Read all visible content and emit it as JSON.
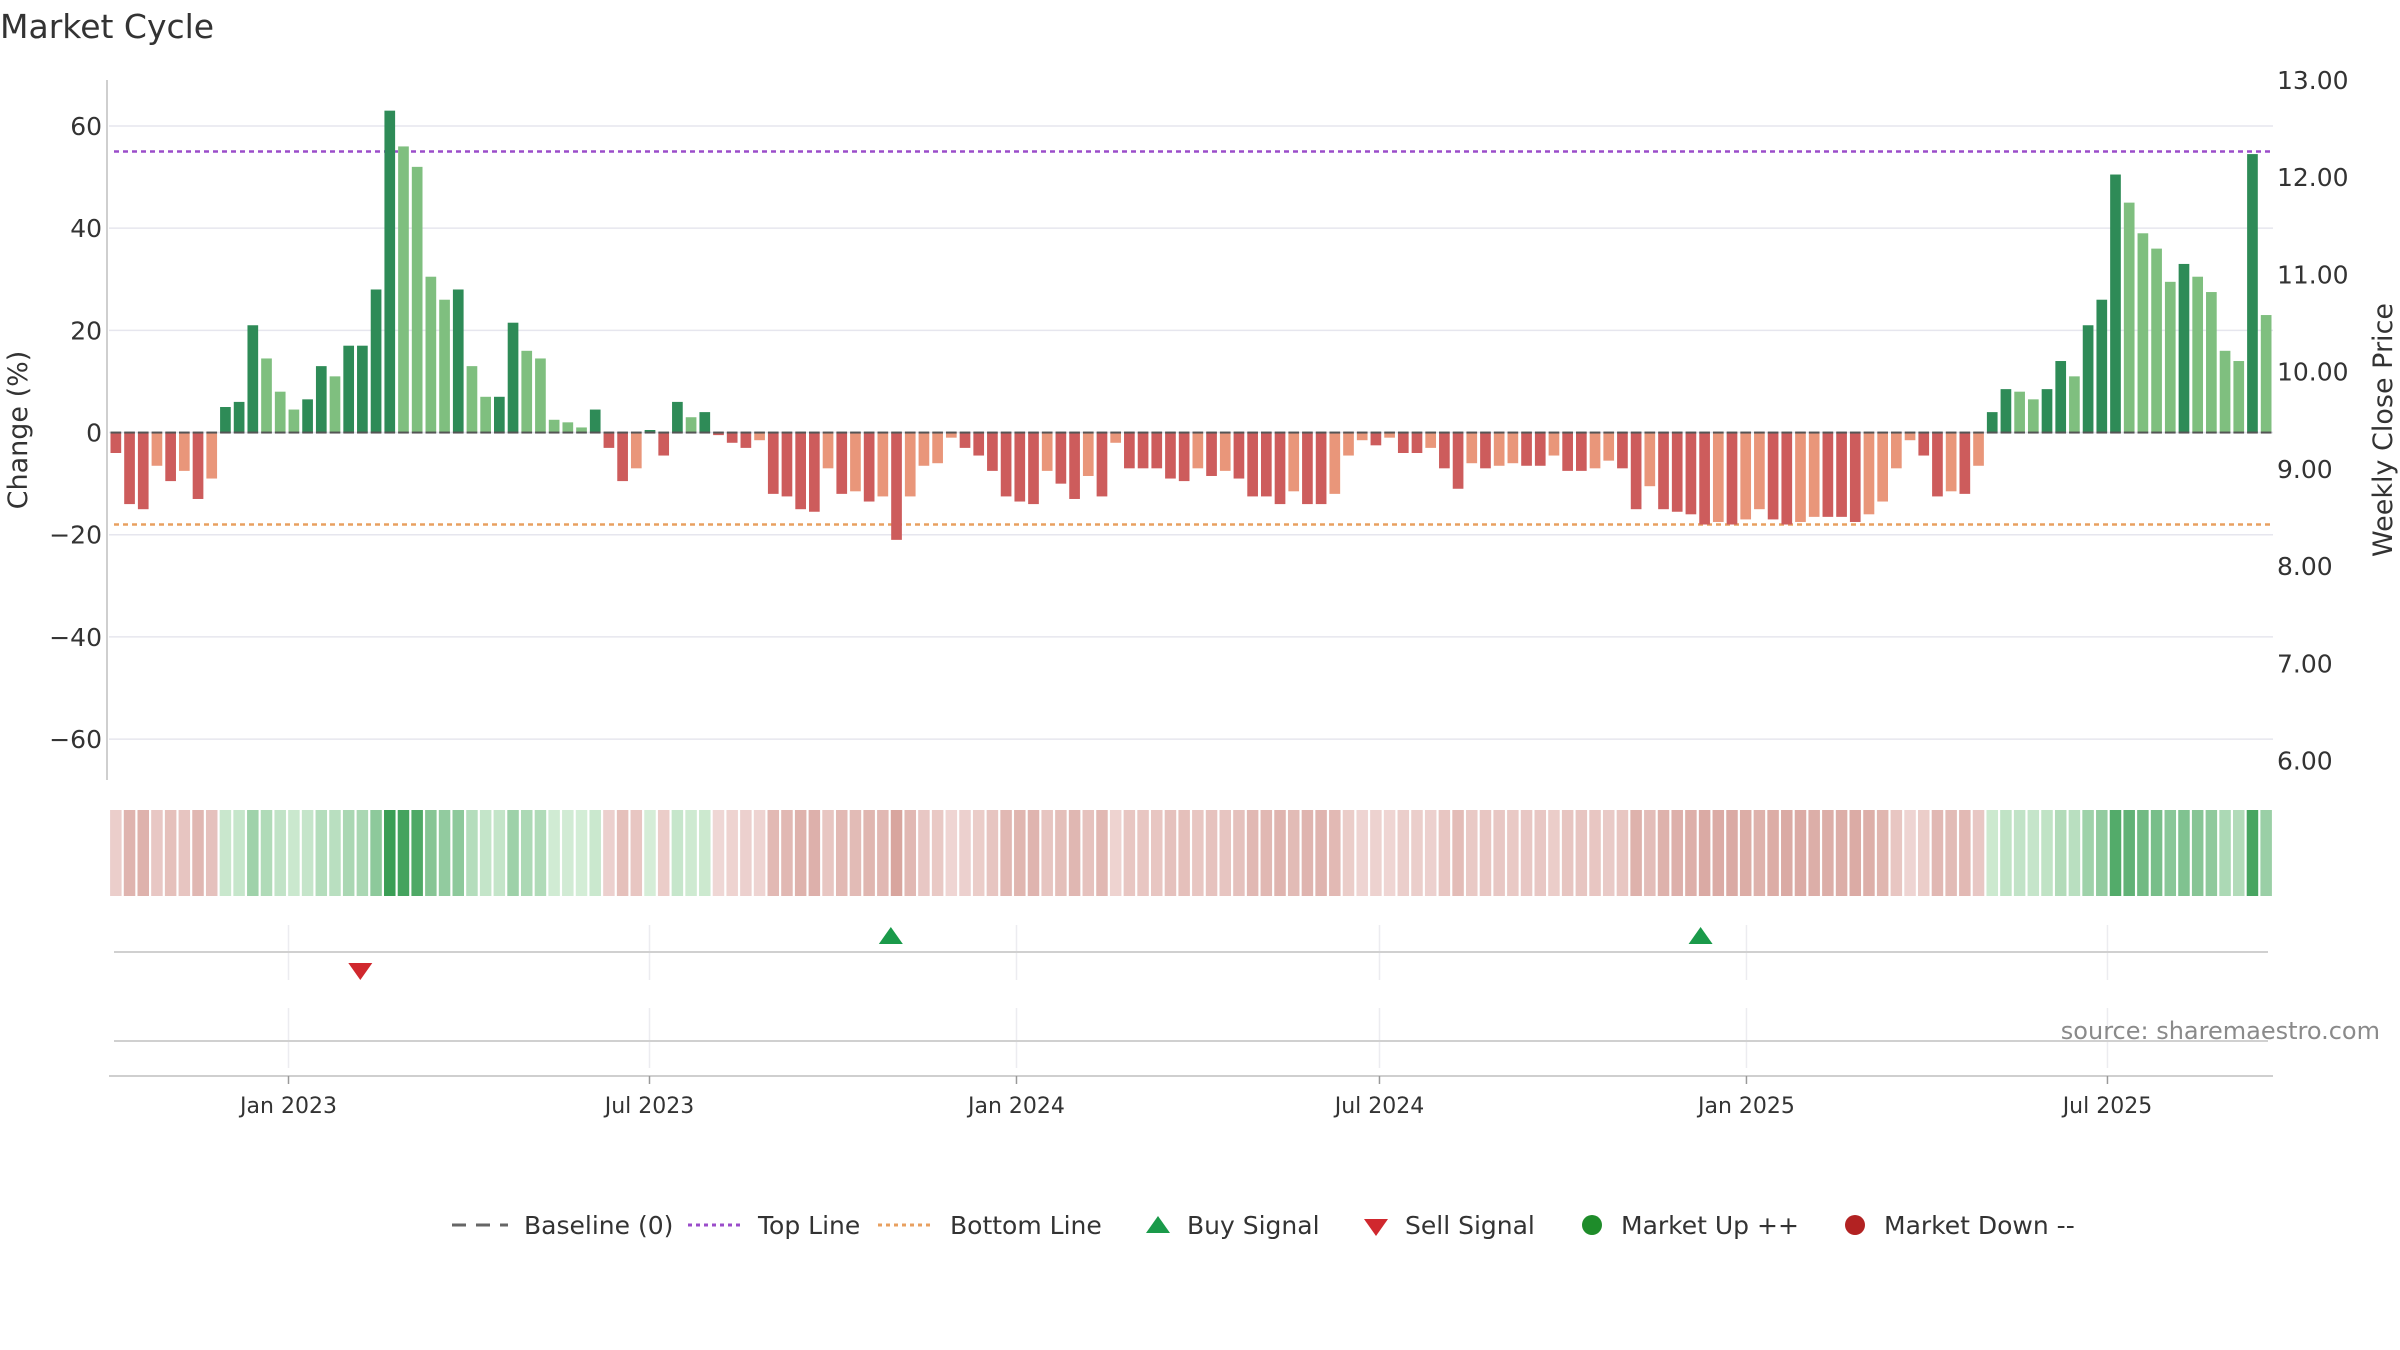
{
  "chart_data": {
    "type": "bar",
    "title": "Market Cycle",
    "ylabel_left": "Change (%)",
    "ylabel_right": "Weekly Close Price",
    "source": "source: sharemaestro.com",
    "left_ylim": [
      -68,
      69
    ],
    "left_yticks": [
      "60",
      "40",
      "20",
      "0",
      "−20",
      "−40",
      "−60"
    ],
    "left_ytick_values": [
      60,
      40,
      20,
      0,
      -20,
      -40,
      -60
    ],
    "right_ylim": [
      5.8,
      13.0
    ],
    "right_yticks": [
      "13.00",
      "12.00",
      "11.00",
      "10.00",
      "9.00",
      "8.00",
      "7.00",
      "6.00"
    ],
    "right_ytick_values": [
      13,
      12,
      11,
      10,
      9,
      8,
      7,
      6
    ],
    "x_start": "2022-10-03",
    "x_end": "2025-09-22",
    "xticks": [
      "Jan 2023",
      "Jul 2023",
      "Jan 2024",
      "Jul 2024",
      "Jan 2025",
      "Jul 2025"
    ],
    "xtick_dates": [
      "2023-01-01",
      "2023-07-01",
      "2024-01-01",
      "2024-07-01",
      "2025-01-01",
      "2025-07-01"
    ],
    "top_line": 55,
    "bottom_line": -18,
    "colors": {
      "strong_up": "#2e8b57",
      "weak_up": "#7fbf7f",
      "strong_down": "#cd5c5c",
      "weak_down": "#e9967a",
      "top_line": "#9b4dca",
      "bottom_line": "#e8a060",
      "buy": "#1a9a4a",
      "sell": "#d0282e",
      "market_up": "#1e8c2a",
      "market_down": "#b22222",
      "baseline": "#666666"
    },
    "values": [
      -4,
      -14,
      -15,
      -6.5,
      -9.5,
      -7.5,
      -13,
      -9,
      5,
      6,
      21,
      14.5,
      8,
      4.5,
      6.5,
      13,
      11,
      17,
      17,
      28,
      63,
      56,
      52,
      30.5,
      26,
      28,
      13,
      7,
      7,
      21.5,
      16,
      14.5,
      2.5,
      2,
      1,
      4.5,
      -3,
      -9.5,
      -7,
      0.5,
      -4.5,
      6,
      3,
      4,
      -0.5,
      -2,
      -3,
      -1.5,
      -12,
      -12.5,
      -15,
      -15.5,
      -7,
      -12,
      -11.5,
      -13.5,
      -12.5,
      -21,
      -12.5,
      -6.5,
      -6,
      -1,
      -3,
      -4.5,
      -7.5,
      -12.5,
      -13.5,
      -14,
      -7.5,
      -10,
      -13,
      -8.5,
      -12.5,
      -2,
      -7,
      -7,
      -7,
      -9,
      -9.5,
      -7,
      -8.5,
      -7.5,
      -9,
      -12.5,
      -12.5,
      -14,
      -11.5,
      -14,
      -14,
      -12,
      -4.5,
      -1.5,
      -2.5,
      -1,
      -4,
      -4,
      -3,
      -7,
      -11,
      -6,
      -7,
      -6.5,
      -6,
      -6.5,
      -6.5,
      -4.5,
      -7.5,
      -7.5,
      -7,
      -5.5,
      -7,
      -15,
      -10.5,
      -15,
      -15.5,
      -16,
      -18,
      -17.5,
      -18,
      -17,
      -15,
      -17,
      -18,
      -17.5,
      -16.5,
      -16.5,
      -16.5,
      -17.5,
      -16,
      -13.5,
      -7,
      -1.5,
      -4.5,
      -12.5,
      -11.5,
      -12,
      -6.5,
      4,
      8.5,
      8,
      6.5,
      8.5,
      14,
      11,
      21,
      26,
      50.5,
      45,
      39,
      36,
      29.5,
      33,
      30.5,
      27.5,
      16,
      14,
      54.5,
      23
    ],
    "buy_signals": [
      "2023-10-30",
      "2024-12-09"
    ],
    "sell_signals": [
      "2023-02-06"
    ],
    "legend": [
      {
        "label": "Baseline (0)",
        "symbol": "dash",
        "color": "#666666"
      },
      {
        "label": "Top Line",
        "symbol": "dotted",
        "color": "#9b4dca"
      },
      {
        "label": "Bottom Line",
        "symbol": "dotted",
        "color": "#e8a060"
      },
      {
        "label": "Buy Signal",
        "symbol": "triangle-up",
        "color": "#1a9a4a"
      },
      {
        "label": "Sell Signal",
        "symbol": "triangle-down",
        "color": "#d0282e"
      },
      {
        "label": "Market Up ++",
        "symbol": "circle",
        "color": "#1e8c2a"
      },
      {
        "label": "Market Down --",
        "symbol": "circle",
        "color": "#b22222"
      }
    ]
  }
}
